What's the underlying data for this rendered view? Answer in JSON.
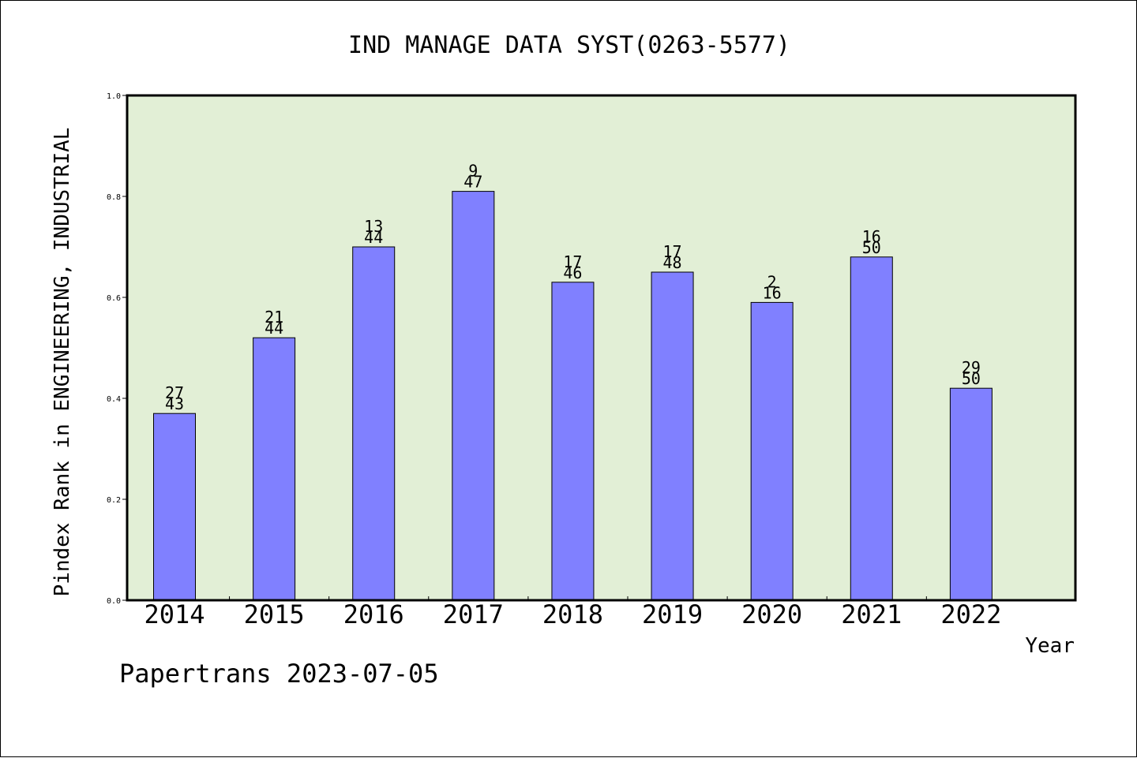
{
  "chart_data": {
    "type": "bar",
    "title": "IND MANAGE DATA SYST(0263-5577)",
    "xlabel": "Year",
    "ylabel": "Pindex Rank in ENGINEERING, INDUSTRIAL",
    "categories": [
      "2014",
      "2015",
      "2016",
      "2017",
      "2018",
      "2019",
      "2020",
      "2021",
      "2022"
    ],
    "values": [
      0.37,
      0.52,
      0.7,
      0.81,
      0.63,
      0.65,
      0.59,
      0.68,
      0.42
    ],
    "rank": [
      "27",
      "21",
      "13",
      "9",
      "17",
      "17",
      "2",
      "16",
      "29"
    ],
    "total": [
      "43",
      "44",
      "44",
      "47",
      "46",
      "48",
      "16",
      "50",
      "50"
    ],
    "ylim": [
      0,
      1.0
    ],
    "yticks": [
      "0.0",
      "0.2",
      "0.4",
      "0.6",
      "0.8",
      "1.0"
    ],
    "grid": false,
    "bar_color": "#8080ff",
    "plot_background": "#e2efd6"
  },
  "footer": {
    "credit": "Papertrans 2023-07-05"
  }
}
